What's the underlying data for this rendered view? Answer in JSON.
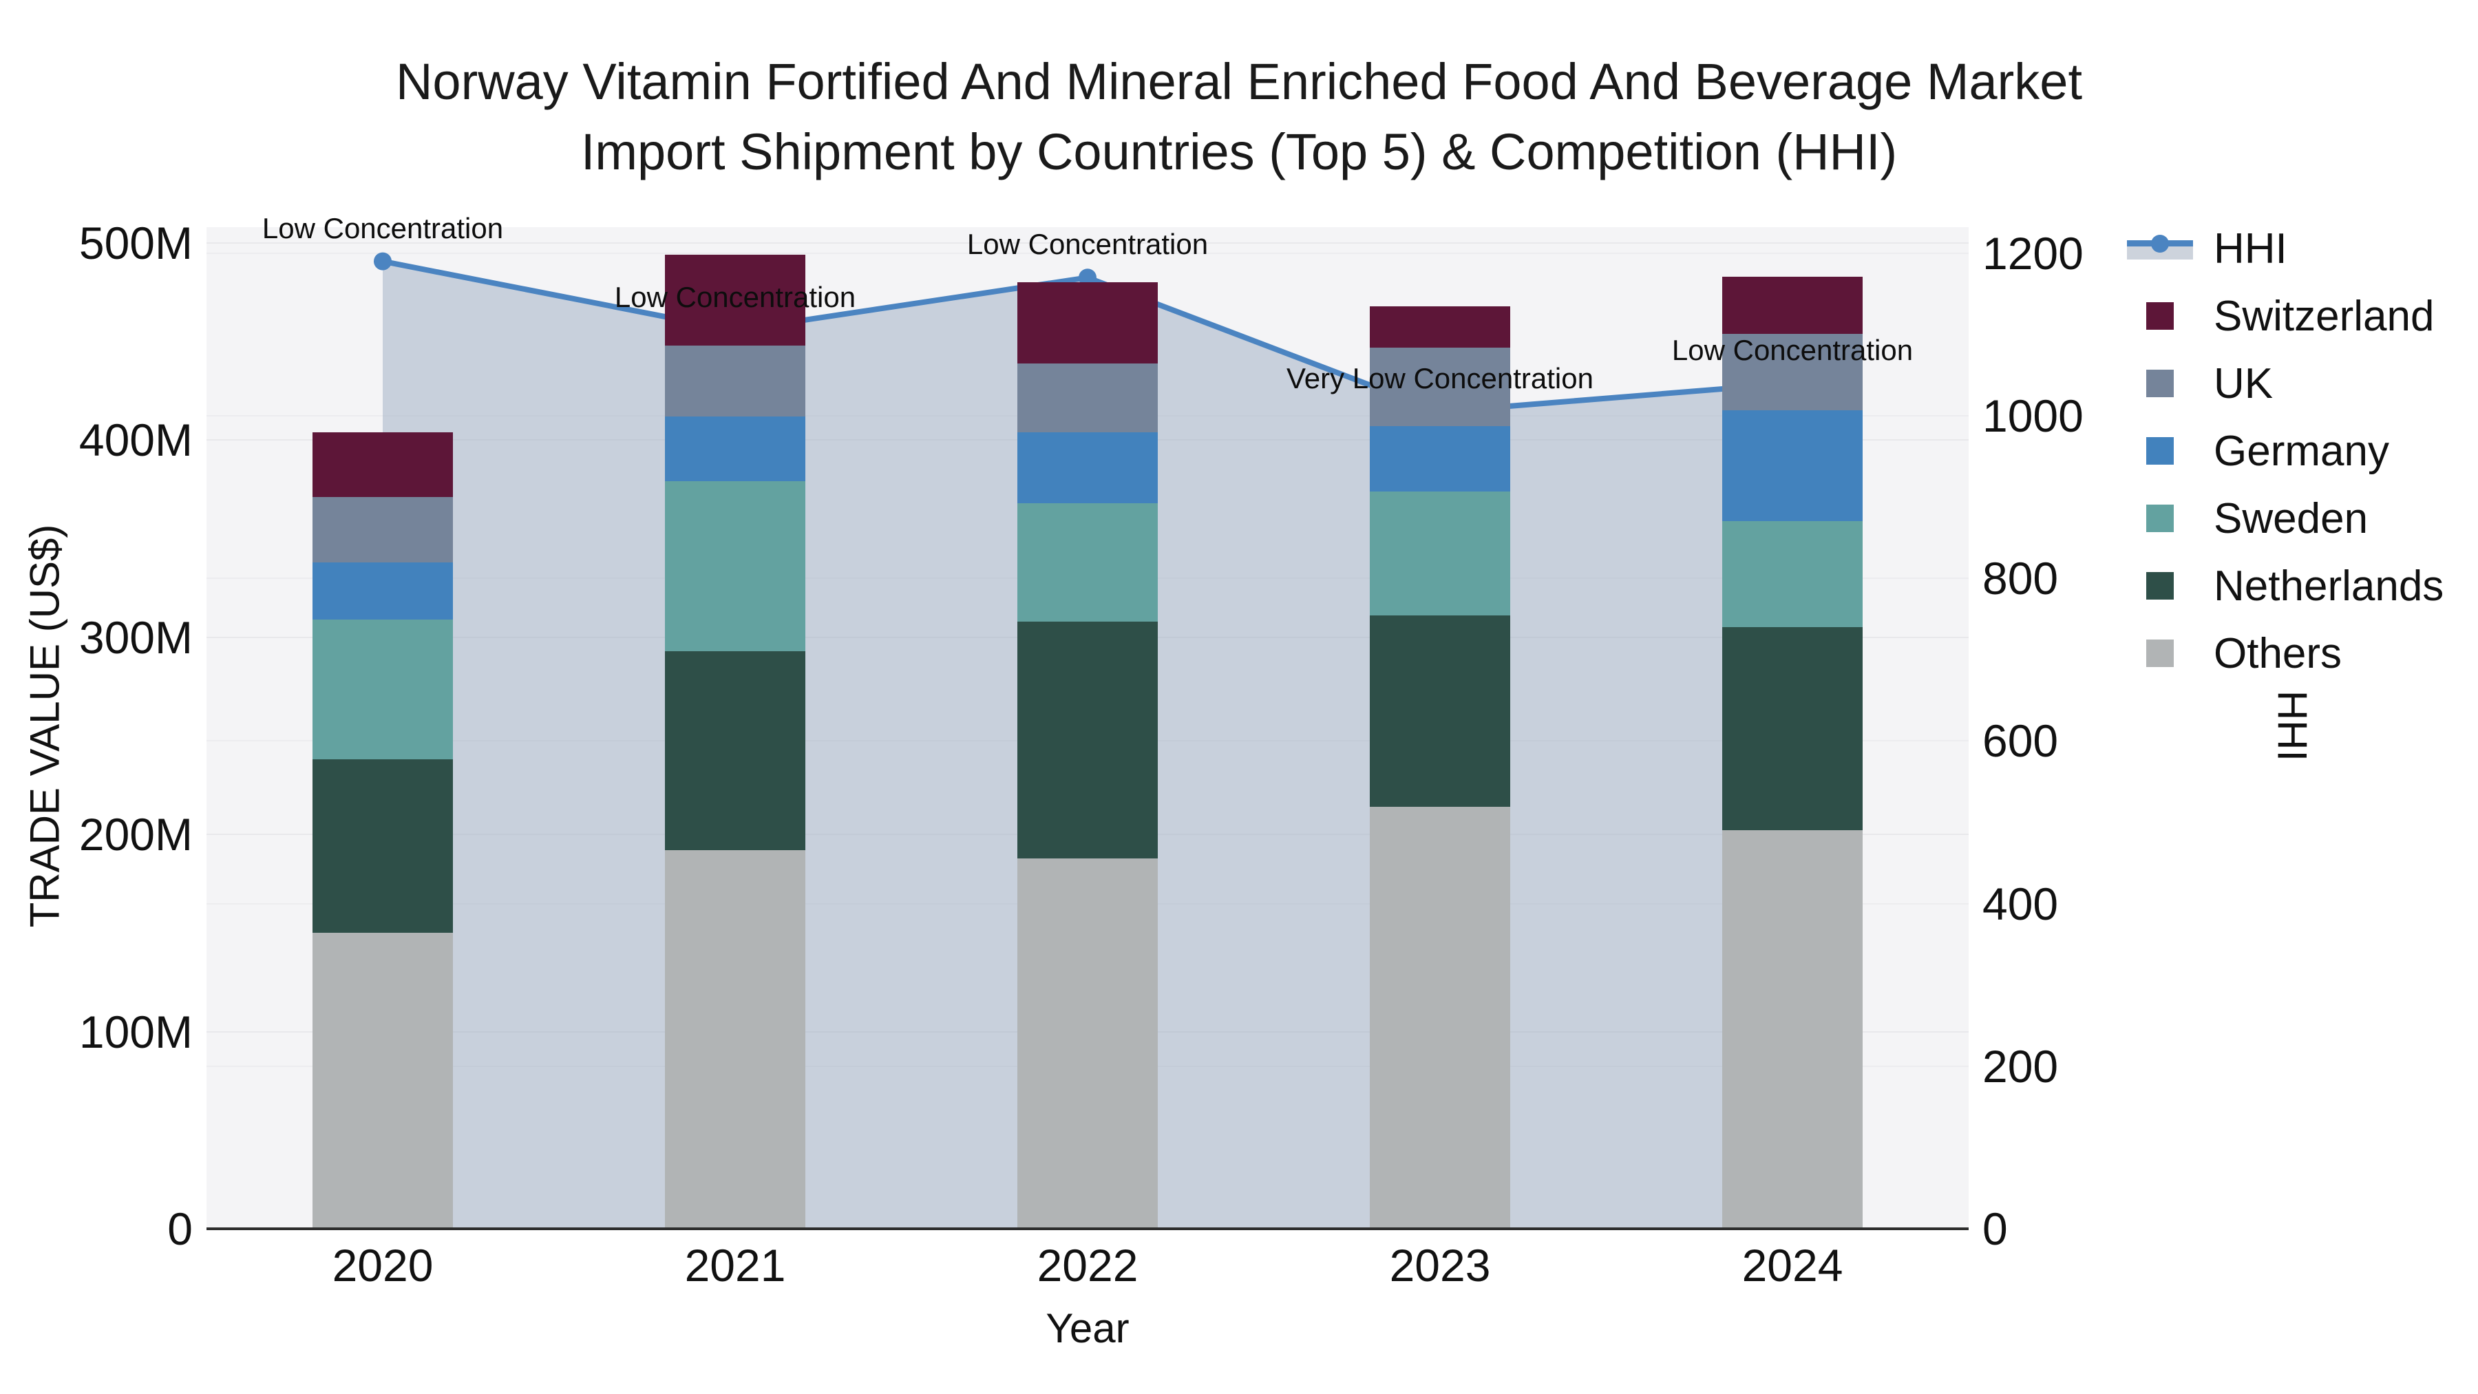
{
  "title": {
    "line1": "Norway Vitamin Fortified And Mineral Enriched Food And Beverage Market",
    "line2": "Import Shipment by Countries (Top 5) & Competition (HHI)"
  },
  "chart_data": {
    "type": "combo-stacked-bar-line",
    "categories": [
      "2020",
      "2021",
      "2022",
      "2023",
      "2024"
    ],
    "xlabel": "Year",
    "yaxis_left": {
      "label": "TRADE VALUE (US$)",
      "units": "millions of US$",
      "ticks": [
        0,
        100,
        200,
        300,
        400,
        500
      ],
      "tick_labels": [
        "0",
        "100M",
        "200M",
        "300M",
        "400M",
        "500M"
      ],
      "range": [
        0,
        508
      ]
    },
    "yaxis_right": {
      "label": "HHI",
      "ticks": [
        0,
        200,
        400,
        600,
        800,
        1000,
        1200
      ],
      "tick_labels": [
        "0",
        "200",
        "400",
        "600",
        "800",
        "1000",
        "1200"
      ],
      "range": [
        0,
        1232
      ]
    },
    "stack_order": [
      "Others",
      "Netherlands",
      "Sweden",
      "Germany",
      "UK",
      "Switzerland"
    ],
    "series": [
      {
        "name": "Switzerland",
        "color": "#5D1638",
        "values": [
          33,
          46,
          41,
          21,
          29
        ]
      },
      {
        "name": "UK",
        "color": "#75849A",
        "values": [
          33,
          36,
          35,
          40,
          39
        ]
      },
      {
        "name": "Germany",
        "color": "#4282BD",
        "values": [
          29,
          33,
          36,
          33,
          56
        ]
      },
      {
        "name": "Sweden",
        "color": "#63A2A0",
        "values": [
          71,
          86,
          60,
          63,
          54
        ]
      },
      {
        "name": "Netherlands",
        "color": "#2E4F48",
        "values": [
          88,
          101,
          120,
          97,
          103
        ]
      },
      {
        "name": "Others",
        "color": "#B1B4B5",
        "values": [
          150,
          192,
          188,
          214,
          202
        ]
      }
    ],
    "totals": [
      404,
      494,
      480,
      468,
      483
    ],
    "hhi": {
      "name": "HHI",
      "line_color": "#4B84C1",
      "area_color": "rgba(160,174,196,0.52)",
      "values": [
        1190,
        1105,
        1170,
        1005,
        1040
      ]
    },
    "annotations": [
      {
        "year": "2020",
        "text": "Low Concentration"
      },
      {
        "year": "2021",
        "text": "Low Concentration"
      },
      {
        "year": "2022",
        "text": "Low Concentration"
      },
      {
        "year": "2023",
        "text": "Very Low Concentration"
      },
      {
        "year": "2024",
        "text": "Low Concentration"
      }
    ],
    "plot_background": "#F4F4F6",
    "grid_color": "#E8E8EB",
    "legend_position": "right"
  },
  "legend": {
    "items": [
      {
        "label": "HHI",
        "type": "line-band",
        "color": "#4B84C1"
      },
      {
        "label": "Switzerland",
        "type": "square",
        "color": "#5D1638"
      },
      {
        "label": "UK",
        "type": "square",
        "color": "#75849A"
      },
      {
        "label": "Germany",
        "type": "square",
        "color": "#4282BD"
      },
      {
        "label": "Sweden",
        "type": "square",
        "color": "#63A2A0"
      },
      {
        "label": "Netherlands",
        "type": "square",
        "color": "#2E4F48"
      },
      {
        "label": "Others",
        "type": "square",
        "color": "#B1B4B5"
      }
    ]
  }
}
